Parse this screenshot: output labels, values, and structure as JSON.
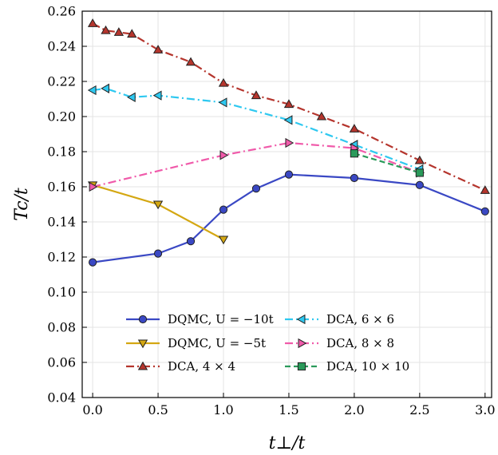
{
  "chart_data": {
    "type": "line",
    "xlabel": "t⊥/t",
    "ylabel": "Tc/t",
    "xlim": [
      -0.08,
      3.05
    ],
    "ylim": [
      0.04,
      0.26
    ],
    "xticks": [
      "0.0",
      "0.5",
      "1.0",
      "1.5",
      "2.0",
      "2.5",
      "3.0"
    ],
    "xtick_values": [
      0,
      0.5,
      1,
      1.5,
      2,
      2.5,
      3
    ],
    "yticks": [
      "0.04",
      "0.06",
      "0.08",
      "0.10",
      "0.12",
      "0.14",
      "0.16",
      "0.18",
      "0.20",
      "0.22",
      "0.24",
      "0.26"
    ],
    "ytick_values": [
      0.04,
      0.06,
      0.08,
      0.1,
      0.12,
      0.14,
      0.16,
      0.18,
      0.2,
      0.22,
      0.24,
      0.26
    ],
    "grid": true,
    "legend_position": "lower-center",
    "series": [
      {
        "name": "DQMC, U = −10t",
        "color": "#3a48c4",
        "dash": "solid",
        "marker": "circle",
        "x": [
          0.0,
          0.5,
          0.75,
          1.0,
          1.25,
          1.5,
          2.0,
          2.5,
          3.0
        ],
        "y": [
          0.117,
          0.122,
          0.129,
          0.147,
          0.159,
          0.167,
          0.165,
          0.161,
          0.146
        ]
      },
      {
        "name": "DQMC, U = −5t",
        "color": "#d4a712",
        "dash": "solid",
        "marker": "triangle-down",
        "x": [
          0.0,
          0.5,
          1.0
        ],
        "y": [
          0.161,
          0.15,
          0.13
        ]
      },
      {
        "name": "DCA, 4 × 4",
        "color": "#b5352d",
        "dash": "dashdot",
        "marker": "triangle-up",
        "x": [
          0.0,
          0.1,
          0.2,
          0.3,
          0.5,
          0.75,
          1.0,
          1.25,
          1.5,
          1.75,
          2.0,
          2.5,
          3.0
        ],
        "y": [
          0.253,
          0.249,
          0.248,
          0.247,
          0.238,
          0.231,
          0.219,
          0.212,
          0.207,
          0.2,
          0.193,
          0.175,
          0.158
        ]
      },
      {
        "name": "DCA, 6 × 6",
        "color": "#2ec8f0",
        "dash": "dashdot",
        "marker": "triangle-left",
        "x": [
          0.0,
          0.1,
          0.3,
          0.5,
          1.0,
          1.5,
          2.0,
          2.5
        ],
        "y": [
          0.215,
          0.216,
          0.211,
          0.212,
          0.208,
          0.198,
          0.184,
          0.17
        ]
      },
      {
        "name": "DCA, 8 × 8",
        "color": "#f05aaa",
        "dash": "dashdot",
        "marker": "triangle-right",
        "x": [
          0.0,
          1.0,
          1.5,
          2.0,
          2.5
        ],
        "y": [
          0.16,
          0.178,
          0.185,
          0.182,
          0.168
        ]
      },
      {
        "name": "DCA, 10 × 10",
        "color": "#2a9a5a",
        "dash": "dashed",
        "marker": "square",
        "x": [
          2.0,
          2.5
        ],
        "y": [
          0.179,
          0.168
        ]
      }
    ]
  }
}
